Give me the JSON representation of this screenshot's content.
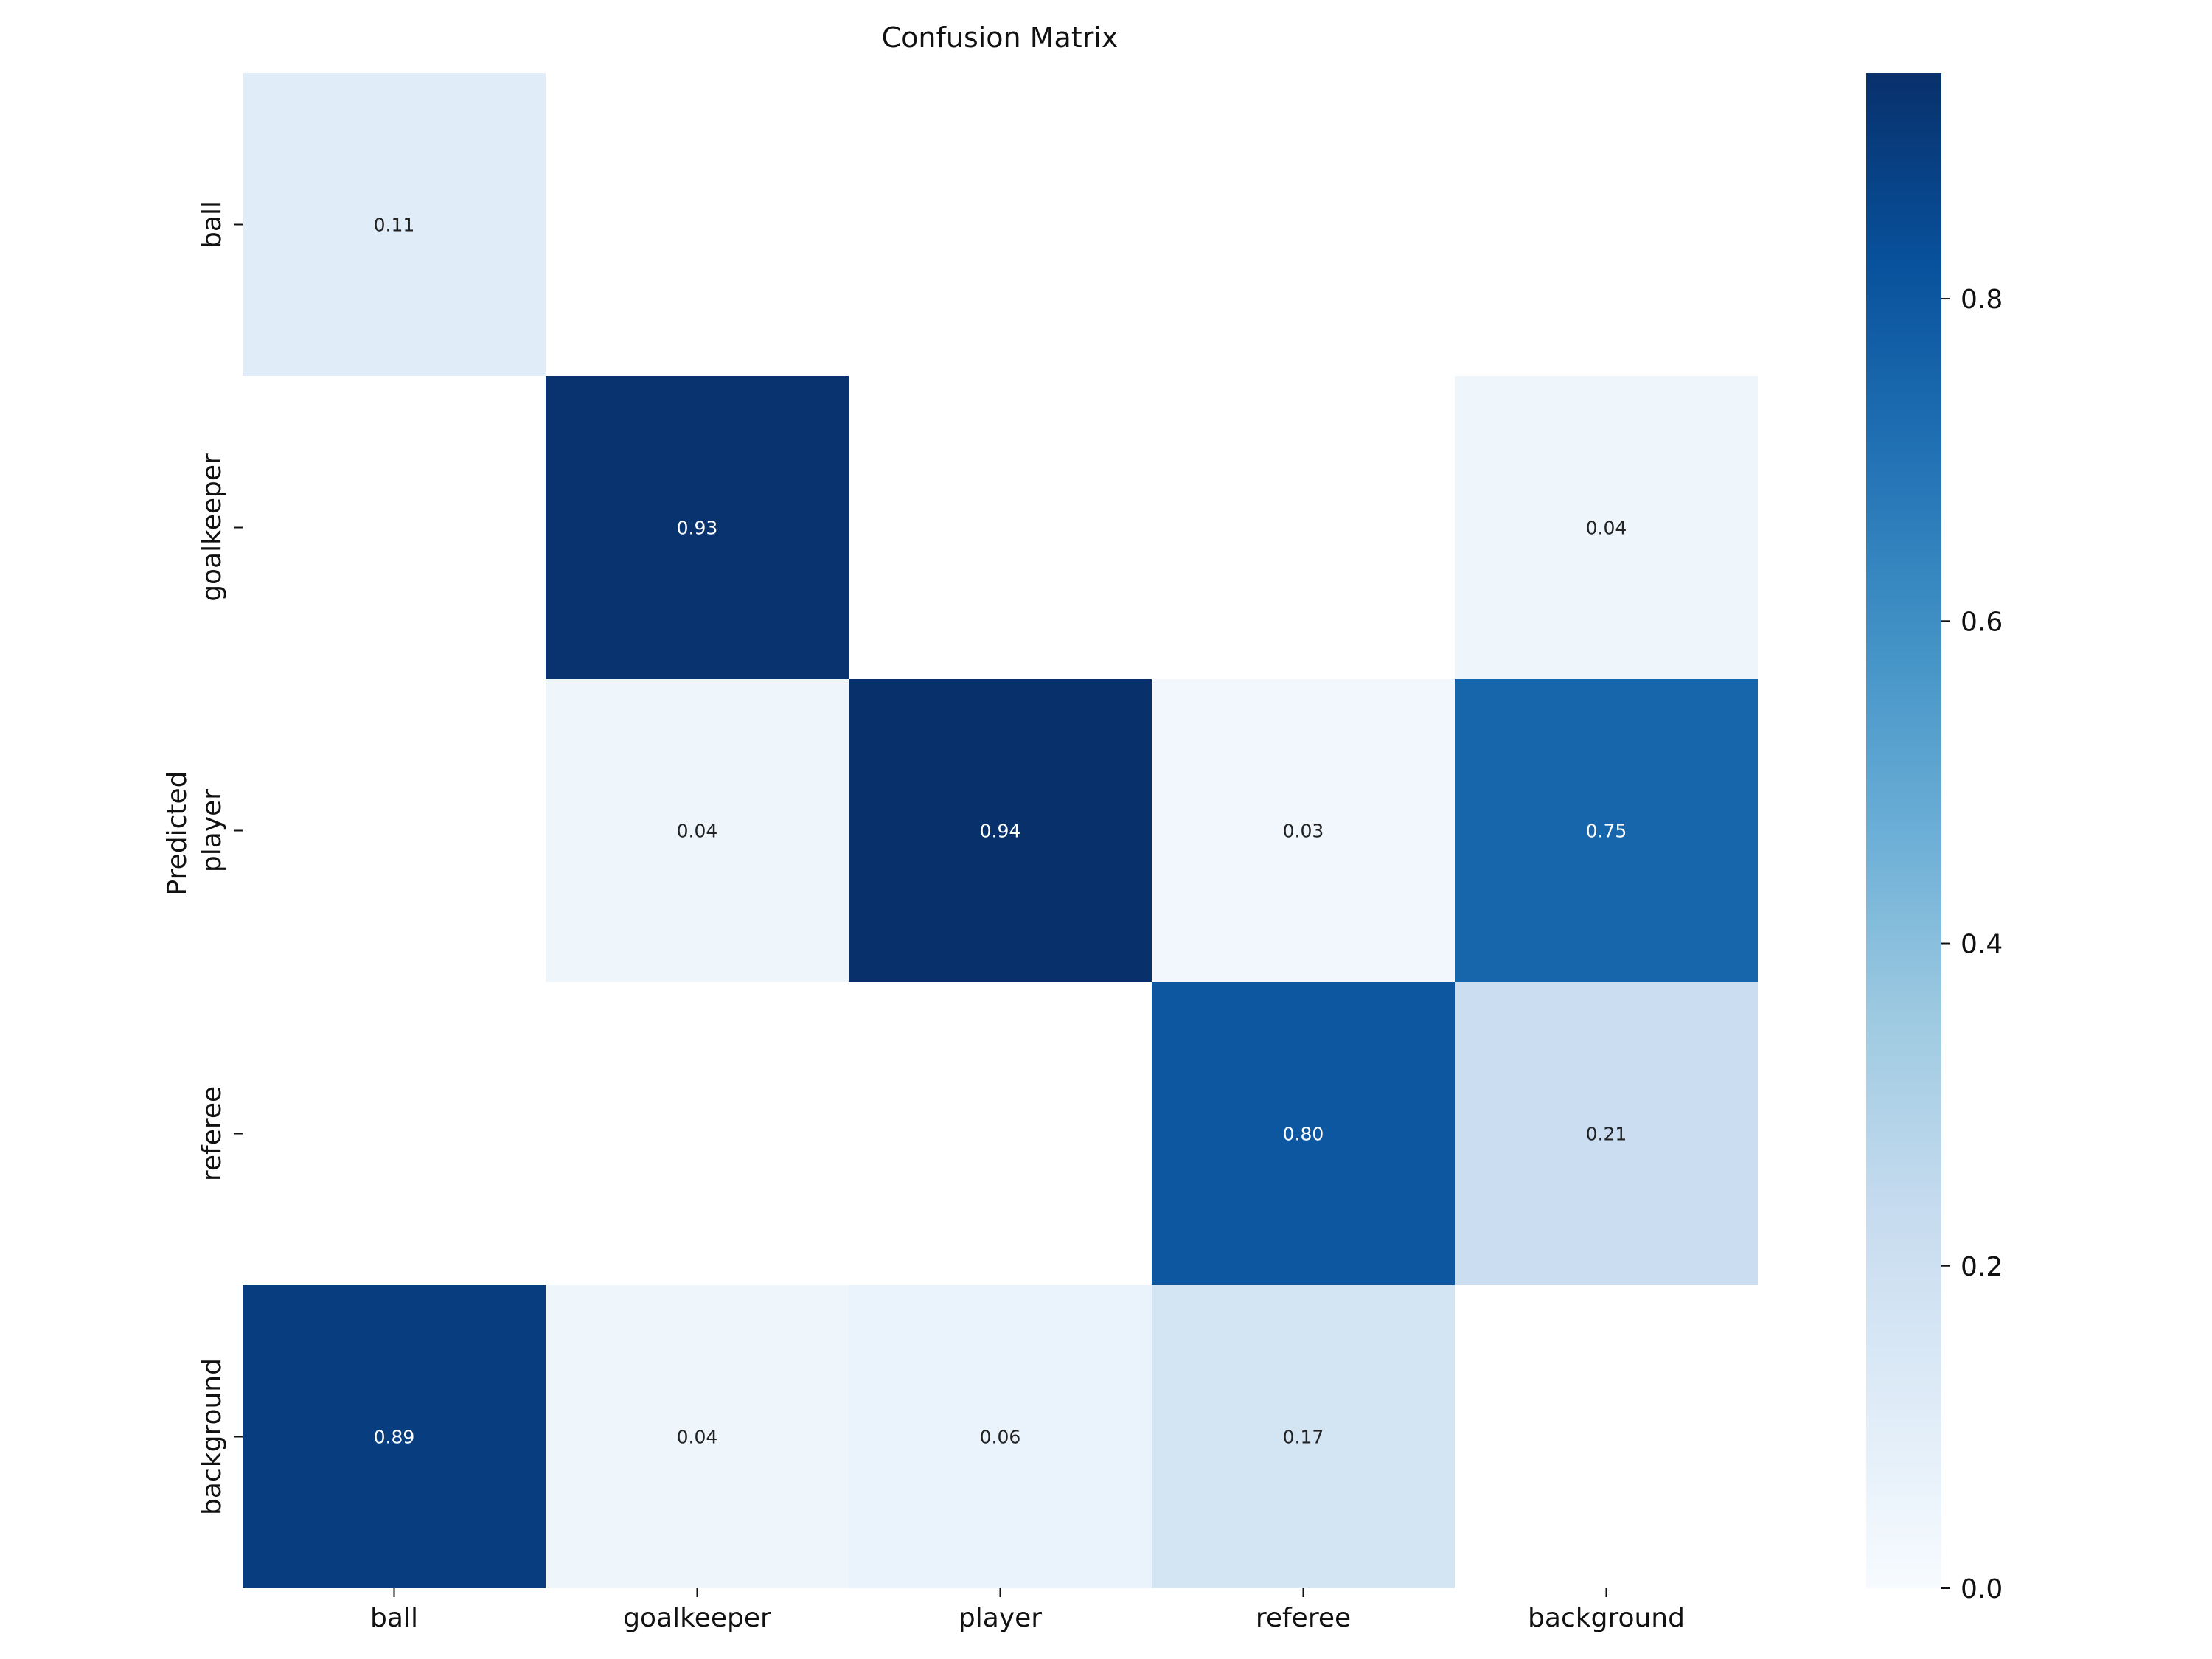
{
  "chart_data": {
    "type": "heatmap",
    "title": "Confusion Matrix",
    "xlabel": "",
    "ylabel": "Predicted",
    "x_categories": [
      "ball",
      "goalkeeper",
      "player",
      "referee",
      "background"
    ],
    "y_categories": [
      "ball",
      "goalkeeper",
      "player",
      "referee",
      "background"
    ],
    "values": [
      [
        0.11,
        null,
        null,
        null,
        null
      ],
      [
        null,
        0.93,
        null,
        null,
        0.04
      ],
      [
        null,
        0.04,
        0.94,
        0.03,
        0.75
      ],
      [
        null,
        null,
        null,
        0.8,
        0.21
      ],
      [
        0.89,
        0.04,
        0.06,
        0.17,
        null
      ]
    ],
    "colormap": "Blues",
    "colorbar": {
      "range": [
        0,
        0.94
      ],
      "ticks": [
        0.0,
        0.2,
        0.4,
        0.6,
        0.8
      ]
    },
    "grid": false
  }
}
